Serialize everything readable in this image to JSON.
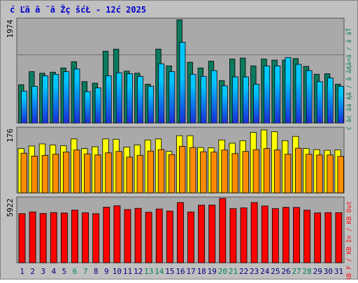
{
  "title": "ć Ľă  ă ¨ă Žç šćŁ  - 12ć   2025",
  "colors": {
    "background": "#c0c0c0",
    "panel": "#a9a9a9",
    "title": "#0000cc",
    "pages": "#0b7a5e",
    "files": "#00c8ff",
    "hits_dark": "#1a2dd8",
    "visits": "#ffff00",
    "sites": "#ff8c00",
    "kbf": "#ff0000",
    "weekend_label": "#008060",
    "weekday_label": "#000080"
  },
  "chart_data": [
    {
      "type": "bar",
      "name": "top",
      "ymax_label": "1974",
      "ylim": [
        0,
        1974
      ],
      "categories": [
        "1",
        "2",
        "3",
        "4",
        "5",
        "6",
        "7",
        "8",
        "9",
        "10",
        "11",
        "12",
        "13",
        "14",
        "15",
        "16",
        "17",
        "18",
        "19",
        "20",
        "21",
        "22",
        "23",
        "24",
        "25",
        "26",
        "27",
        "28",
        "29",
        "30",
        "31"
      ],
      "weekend": [
        6,
        7,
        13,
        14,
        20,
        21,
        27,
        28
      ],
      "legend_label": "ć ăć ăă Ąă / ă ăĄă¤ă / ă ăŤ",
      "series": [
        {
          "key": "pages",
          "values": [
            730,
            980,
            950,
            970,
            1050,
            1170,
            790,
            760,
            1370,
            1410,
            990,
            950,
            740,
            1410,
            1090,
            1970,
            1160,
            1050,
            1180,
            810,
            1220,
            1240,
            1090,
            1220,
            1200,
            1200,
            1230,
            1080,
            930,
            940,
            740
          ]
        },
        {
          "key": "files",
          "values": [
            610,
            700,
            900,
            930,
            980,
            1030,
            600,
            670,
            900,
            960,
            940,
            890,
            700,
            1130,
            980,
            1540,
            930,
            890,
            1000,
            710,
            880,
            880,
            740,
            1090,
            1090,
            1250,
            1120,
            1000,
            790,
            860,
            700
          ]
        },
        {
          "key": "hits_dark",
          "values": [
            480,
            600,
            700,
            740,
            820,
            820,
            520,
            590,
            820,
            820,
            720,
            700,
            590,
            820,
            820,
            880,
            720,
            700,
            790,
            560,
            700,
            700,
            600,
            820,
            820,
            820,
            820,
            820,
            640,
            700,
            560
          ]
        }
      ]
    },
    {
      "type": "bar",
      "name": "middle",
      "ymax_label": "176",
      "ylim": [
        0,
        176
      ],
      "series": [
        {
          "key": "visits",
          "values": [
            124,
            131,
            137,
            134,
            132,
            151,
            124,
            129,
            151,
            150,
            128,
            134,
            148,
            151,
            116,
            160,
            160,
            127,
            126,
            148,
            139,
            146,
            169,
            176,
            171,
            146,
            158,
            124,
            121,
            119,
            120
          ]
        },
        {
          "key": "sites",
          "values": [
            111,
            103,
            105,
            108,
            114,
            120,
            109,
            106,
            112,
            116,
            100,
            105,
            117,
            121,
            107,
            130,
            127,
            115,
            114,
            120,
            110,
            116,
            121,
            124,
            120,
            108,
            125,
            108,
            106,
            106,
            102
          ]
        }
      ]
    },
    {
      "type": "bar",
      "name": "bottom",
      "ymax_label": "5922",
      "ylim": [
        0,
        5922
      ],
      "legend_label": "KB F / KB In / KB Out",
      "series": [
        {
          "key": "kbf",
          "values": [
            4520,
            4680,
            4540,
            4620,
            4580,
            4850,
            4600,
            4520,
            5120,
            5250,
            4900,
            5010,
            4650,
            4950,
            4760,
            5550,
            4680,
            5300,
            5310,
            5922,
            4980,
            5060,
            5550,
            5230,
            4980,
            5110,
            5100,
            4840,
            4590,
            4620,
            4610
          ]
        }
      ]
    }
  ]
}
